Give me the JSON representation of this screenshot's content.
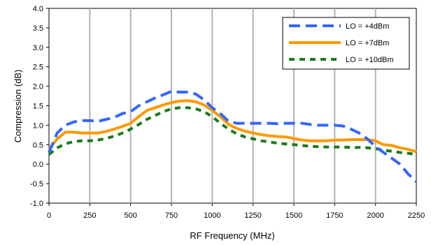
{
  "chart_data": {
    "type": "line",
    "xlabel": "RF Frequency (MHz)",
    "ylabel": "Compression (dB)",
    "xlim": [
      0,
      2250
    ],
    "ylim": [
      -1.0,
      4.0
    ],
    "xticks": [
      "0",
      "250",
      "500",
      "750",
      "1000",
      "1250",
      "1500",
      "1750",
      "2000",
      "2250"
    ],
    "yticks": [
      "-1.0",
      "-0.5",
      "0.0",
      "0.5",
      "1.0",
      "1.5",
      "2.0",
      "2.5",
      "3.0",
      "3.5",
      "4.0"
    ],
    "grid": "vertical",
    "legend": "top-right",
    "series": [
      {
        "name": "LO = +4dBm",
        "color": "#3366ff",
        "style": "dashed",
        "points": [
          [
            0,
            0.3
          ],
          [
            50,
            0.8
          ],
          [
            100,
            1.0
          ],
          [
            150,
            1.08
          ],
          [
            200,
            1.12
          ],
          [
            250,
            1.12
          ],
          [
            300,
            1.1
          ],
          [
            350,
            1.15
          ],
          [
            400,
            1.2
          ],
          [
            450,
            1.3
          ],
          [
            500,
            1.35
          ],
          [
            550,
            1.5
          ],
          [
            600,
            1.6
          ],
          [
            650,
            1.7
          ],
          [
            700,
            1.78
          ],
          [
            750,
            1.87
          ],
          [
            800,
            1.85
          ],
          [
            850,
            1.85
          ],
          [
            900,
            1.8
          ],
          [
            950,
            1.65
          ],
          [
            1000,
            1.45
          ],
          [
            1050,
            1.3
          ],
          [
            1100,
            1.1
          ],
          [
            1150,
            1.05
          ],
          [
            1200,
            1.05
          ],
          [
            1250,
            1.05
          ],
          [
            1300,
            1.05
          ],
          [
            1350,
            1.05
          ],
          [
            1400,
            1.04
          ],
          [
            1450,
            1.05
          ],
          [
            1500,
            1.05
          ],
          [
            1550,
            1.05
          ],
          [
            1600,
            1.02
          ],
          [
            1650,
            1.0
          ],
          [
            1700,
            1.0
          ],
          [
            1750,
            1.0
          ],
          [
            1800,
            0.98
          ],
          [
            1850,
            0.9
          ],
          [
            1900,
            0.8
          ],
          [
            1950,
            0.65
          ],
          [
            2000,
            0.45
          ],
          [
            2050,
            0.3
          ],
          [
            2100,
            0.15
          ],
          [
            2150,
            0.0
          ],
          [
            2200,
            -0.25
          ],
          [
            2250,
            -0.45
          ]
        ]
      },
      {
        "name": "LO = +7dBm",
        "color": "#ff9900",
        "style": "solid",
        "points": [
          [
            0,
            0.38
          ],
          [
            50,
            0.65
          ],
          [
            100,
            0.82
          ],
          [
            150,
            0.82
          ],
          [
            200,
            0.8
          ],
          [
            250,
            0.8
          ],
          [
            300,
            0.8
          ],
          [
            350,
            0.84
          ],
          [
            400,
            0.9
          ],
          [
            450,
            0.97
          ],
          [
            500,
            1.05
          ],
          [
            550,
            1.22
          ],
          [
            600,
            1.38
          ],
          [
            650,
            1.45
          ],
          [
            700,
            1.52
          ],
          [
            750,
            1.58
          ],
          [
            800,
            1.62
          ],
          [
            850,
            1.63
          ],
          [
            900,
            1.6
          ],
          [
            950,
            1.52
          ],
          [
            1000,
            1.38
          ],
          [
            1050,
            1.22
          ],
          [
            1100,
            1.02
          ],
          [
            1150,
            0.92
          ],
          [
            1200,
            0.85
          ],
          [
            1250,
            0.8
          ],
          [
            1300,
            0.76
          ],
          [
            1350,
            0.73
          ],
          [
            1400,
            0.71
          ],
          [
            1450,
            0.7
          ],
          [
            1500,
            0.66
          ],
          [
            1550,
            0.62
          ],
          [
            1600,
            0.6
          ],
          [
            1650,
            0.6
          ],
          [
            1700,
            0.6
          ],
          [
            1750,
            0.62
          ],
          [
            1800,
            0.62
          ],
          [
            1850,
            0.63
          ],
          [
            1900,
            0.63
          ],
          [
            1950,
            0.63
          ],
          [
            2000,
            0.6
          ],
          [
            2050,
            0.5
          ],
          [
            2100,
            0.48
          ],
          [
            2150,
            0.42
          ],
          [
            2200,
            0.38
          ],
          [
            2250,
            0.32
          ]
        ]
      },
      {
        "name": "LO = +10dBm",
        "color": "#1a7a1a",
        "style": "dotted",
        "points": [
          [
            0,
            0.25
          ],
          [
            50,
            0.42
          ],
          [
            100,
            0.52
          ],
          [
            150,
            0.58
          ],
          [
            200,
            0.6
          ],
          [
            250,
            0.6
          ],
          [
            300,
            0.62
          ],
          [
            350,
            0.66
          ],
          [
            400,
            0.72
          ],
          [
            450,
            0.8
          ],
          [
            500,
            0.9
          ],
          [
            550,
            1.02
          ],
          [
            600,
            1.15
          ],
          [
            650,
            1.25
          ],
          [
            700,
            1.35
          ],
          [
            750,
            1.42
          ],
          [
            800,
            1.45
          ],
          [
            850,
            1.45
          ],
          [
            900,
            1.42
          ],
          [
            950,
            1.35
          ],
          [
            1000,
            1.22
          ],
          [
            1050,
            1.05
          ],
          [
            1100,
            0.9
          ],
          [
            1150,
            0.78
          ],
          [
            1200,
            0.7
          ],
          [
            1250,
            0.65
          ],
          [
            1300,
            0.6
          ],
          [
            1350,
            0.57
          ],
          [
            1400,
            0.54
          ],
          [
            1450,
            0.52
          ],
          [
            1500,
            0.5
          ],
          [
            1550,
            0.48
          ],
          [
            1600,
            0.46
          ],
          [
            1650,
            0.45
          ],
          [
            1700,
            0.44
          ],
          [
            1750,
            0.44
          ],
          [
            1800,
            0.44
          ],
          [
            1850,
            0.43
          ],
          [
            1900,
            0.43
          ],
          [
            1950,
            0.42
          ],
          [
            2000,
            0.4
          ],
          [
            2050,
            0.36
          ],
          [
            2100,
            0.33
          ],
          [
            2150,
            0.3
          ],
          [
            2200,
            0.28
          ],
          [
            2250,
            0.25
          ]
        ]
      }
    ]
  }
}
